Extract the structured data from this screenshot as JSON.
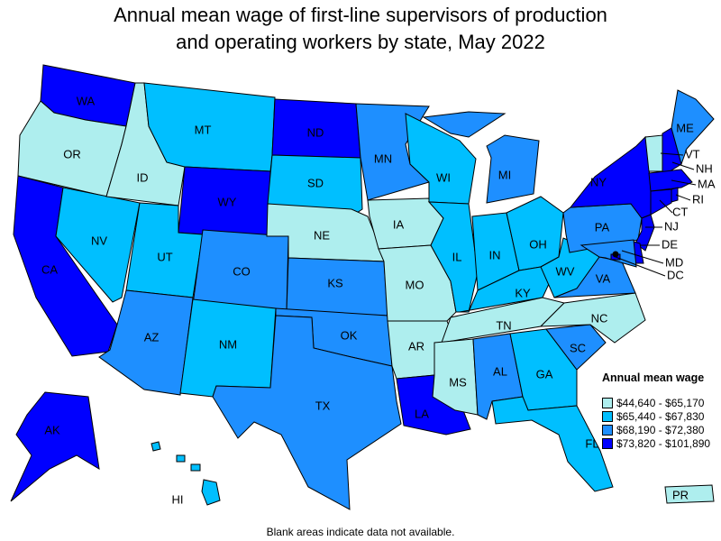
{
  "title_line1": "Annual mean wage of first-line supervisors of production",
  "title_line2": "and operating workers by state, May 2022",
  "legend": {
    "title": "Annual mean wage",
    "bins": [
      {
        "label": "$44,640 - $65,170",
        "color": "#aeeeee"
      },
      {
        "label": "$65,440 - $67,830",
        "color": "#00bfff"
      },
      {
        "label": "$68,190 - $72,380",
        "color": "#1e8fff"
      },
      {
        "label": "$73,820 - $101,890",
        "color": "#0000ff"
      }
    ]
  },
  "states": [
    {
      "abbr": "WA",
      "bin": 3
    },
    {
      "abbr": "OR",
      "bin": 0
    },
    {
      "abbr": "CA",
      "bin": 3
    },
    {
      "abbr": "NV",
      "bin": 1
    },
    {
      "abbr": "ID",
      "bin": 0
    },
    {
      "abbr": "MT",
      "bin": 1
    },
    {
      "abbr": "WY",
      "bin": 3
    },
    {
      "abbr": "UT",
      "bin": 1
    },
    {
      "abbr": "CO",
      "bin": 2
    },
    {
      "abbr": "AZ",
      "bin": 2
    },
    {
      "abbr": "NM",
      "bin": 1
    },
    {
      "abbr": "ND",
      "bin": 3
    },
    {
      "abbr": "SD",
      "bin": 1
    },
    {
      "abbr": "NE",
      "bin": 0
    },
    {
      "abbr": "KS",
      "bin": 2
    },
    {
      "abbr": "OK",
      "bin": 2
    },
    {
      "abbr": "TX",
      "bin": 2
    },
    {
      "abbr": "MN",
      "bin": 2
    },
    {
      "abbr": "IA",
      "bin": 0
    },
    {
      "abbr": "MO",
      "bin": 0
    },
    {
      "abbr": "AR",
      "bin": 0
    },
    {
      "abbr": "LA",
      "bin": 3
    },
    {
      "abbr": "WI",
      "bin": 1
    },
    {
      "abbr": "IL",
      "bin": 1
    },
    {
      "abbr": "MI",
      "bin": 2
    },
    {
      "abbr": "IN",
      "bin": 1
    },
    {
      "abbr": "OH",
      "bin": 1
    },
    {
      "abbr": "KY",
      "bin": 1
    },
    {
      "abbr": "WV",
      "bin": 1
    },
    {
      "abbr": "TN",
      "bin": 0
    },
    {
      "abbr": "MS",
      "bin": 0
    },
    {
      "abbr": "AL",
      "bin": 2
    },
    {
      "abbr": "GA",
      "bin": 1
    },
    {
      "abbr": "FL",
      "bin": 1
    },
    {
      "abbr": "SC",
      "bin": 2
    },
    {
      "abbr": "NC",
      "bin": 0
    },
    {
      "abbr": "VA",
      "bin": 2
    },
    {
      "abbr": "PA",
      "bin": 2
    },
    {
      "abbr": "NY",
      "bin": 3
    },
    {
      "abbr": "VT",
      "bin": 0
    },
    {
      "abbr": "NH",
      "bin": 3
    },
    {
      "abbr": "ME",
      "bin": 2
    },
    {
      "abbr": "MA",
      "bin": 3
    },
    {
      "abbr": "CT",
      "bin": 3
    },
    {
      "abbr": "RI",
      "bin": 3
    },
    {
      "abbr": "NJ",
      "bin": 3
    },
    {
      "abbr": "DE",
      "bin": 3
    },
    {
      "abbr": "MD",
      "bin": 2
    },
    {
      "abbr": "DC",
      "bin": 3
    },
    {
      "abbr": "AK",
      "bin": 3
    },
    {
      "abbr": "HI",
      "bin": 1
    },
    {
      "abbr": "PR",
      "bin": 0
    }
  ],
  "note": "Blank areas indicate data not available."
}
